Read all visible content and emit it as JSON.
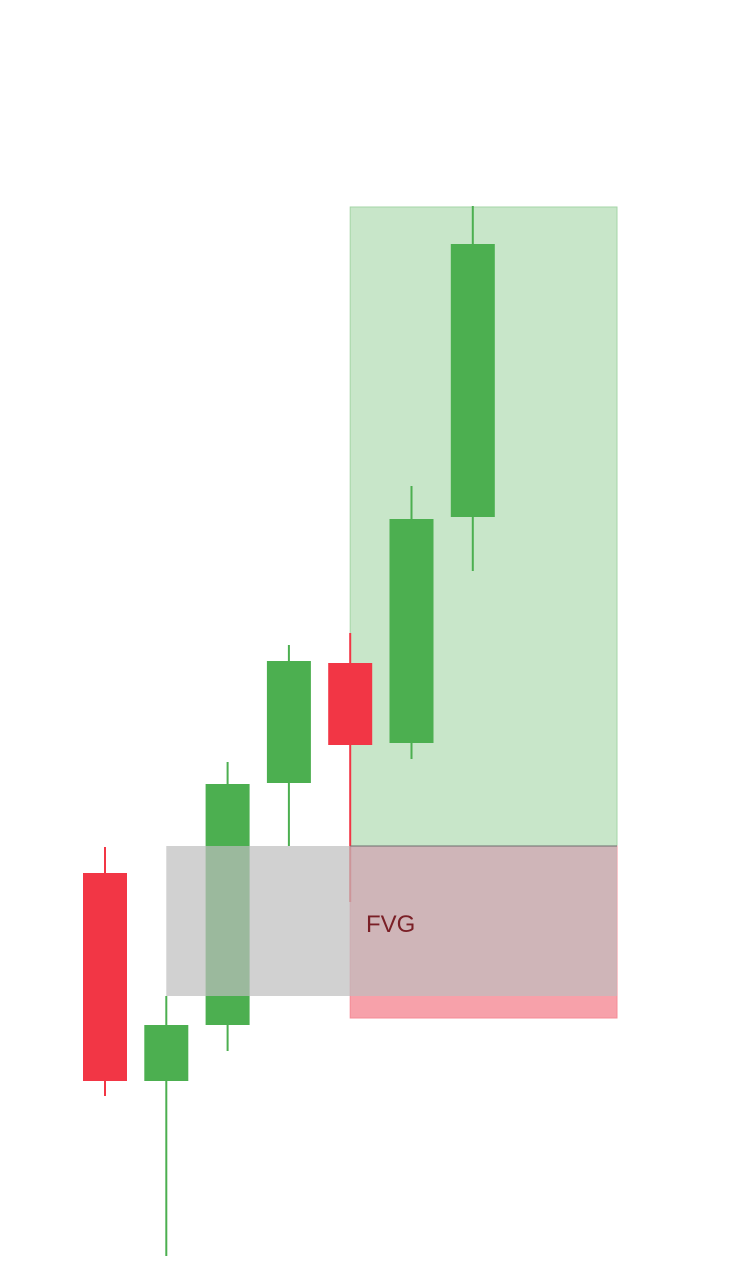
{
  "chart_data": {
    "type": "candlestick",
    "title": "",
    "xlabel": "",
    "ylabel": "",
    "ylim": [
      0,
      1280
    ],
    "colors": {
      "up": "#4caf50",
      "down": "#f23645",
      "target_zone": "#c8e6c9",
      "stop_zone": "#f7a1aa",
      "fvg_zone": "#bdbdbd",
      "fvg_text": "#7a1f26"
    },
    "candles": [
      {
        "open": 1081,
        "close": 873,
        "high": 1096,
        "low": 847,
        "direction": "down"
      },
      {
        "open": 1081,
        "close": 1025,
        "high": 1256,
        "low": 996,
        "direction": "up"
      },
      {
        "open": 1025,
        "close": 784,
        "high": 1051,
        "low": 762,
        "direction": "up"
      },
      {
        "open": 783,
        "close": 661,
        "high": 846,
        "low": 645,
        "direction": "up"
      },
      {
        "open": 663,
        "close": 745,
        "high": 902,
        "low": 633,
        "direction": "down"
      },
      {
        "open": 743,
        "close": 519,
        "high": 759,
        "low": 486,
        "direction": "up"
      },
      {
        "open": 517,
        "close": 244,
        "high": 571,
        "low": 206,
        "direction": "up"
      }
    ],
    "zones": {
      "fvg": {
        "label": "FVG",
        "from_candle": 1,
        "to_candle": 4,
        "top": 846,
        "bottom": 996
      },
      "target": {
        "from_candle": 4,
        "to_candle": 6,
        "top": 207,
        "bottom": 846
      },
      "stop": {
        "from_candle": 4,
        "to_candle": 6,
        "top": 846,
        "bottom": 1018
      }
    }
  }
}
